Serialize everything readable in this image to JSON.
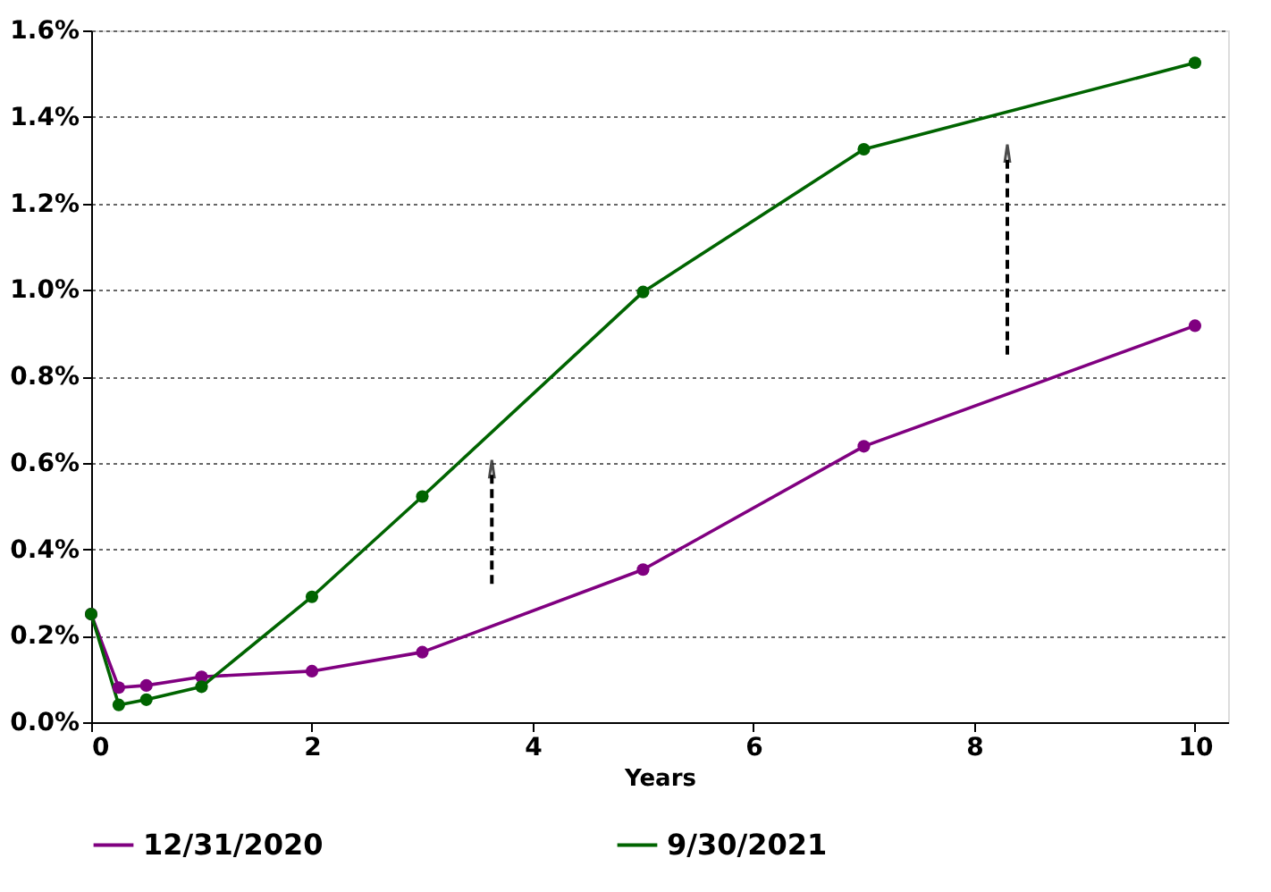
{
  "chart_data": {
    "type": "line",
    "xlabel": "Years",
    "x": [
      0,
      0.25,
      0.5,
      1,
      2,
      3,
      5,
      7,
      10
    ],
    "series": [
      {
        "name": "12/31/2020",
        "color": "#800080",
        "values": [
          0.25,
          0.08,
          0.085,
          0.105,
          0.118,
          0.162,
          0.353,
          0.638,
          0.917
        ]
      },
      {
        "name": "9/30/2021",
        "color": "#006400",
        "values": [
          0.25,
          0.04,
          0.052,
          0.082,
          0.29,
          0.522,
          0.995,
          1.325,
          1.525
        ]
      }
    ],
    "xlim": [
      0,
      10.3
    ],
    "xticks": [
      0,
      2,
      4,
      6,
      8,
      10
    ],
    "ylim": [
      0,
      1.6
    ],
    "yticks": [
      {
        "value": 0,
        "label": "0.0%"
      },
      {
        "value": 0.2,
        "label": "0.2%"
      },
      {
        "value": 0.4,
        "label": "0.4%"
      },
      {
        "value": 0.6,
        "label": "0.6%"
      },
      {
        "value": 0.8,
        "label": "0.8%"
      },
      {
        "value": 1.0,
        "label": "1.0%"
      },
      {
        "value": 1.2,
        "label": "1.2%"
      },
      {
        "value": 1.4,
        "label": "1.4%"
      },
      {
        "value": 1.6,
        "label": "1.6%"
      }
    ],
    "grid": "y",
    "legend": "bottom",
    "marker": "circle",
    "line_style": "solid"
  }
}
